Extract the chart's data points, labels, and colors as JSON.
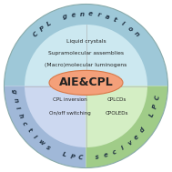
{
  "title": "AIE&CPL",
  "center_ellipse_color": "#f4a07a",
  "center_ellipse_edge": "#d87848",
  "top_label": "CPL generation",
  "left_label": "CPL switching",
  "right_label": "CPL devices",
  "top_items": [
    "Liquid crystals",
    "Supramolecular assemblies",
    "(Macro)molecular luminogens"
  ],
  "bottom_left_items": [
    "CPL inversion",
    "On/off switching"
  ],
  "bottom_right_items": [
    "CPLCDs",
    "CPOLEDs"
  ],
  "bg_color": "#ffffff",
  "outer_top_color": "#9ec8d8",
  "outer_bl_color": "#a0b8d8",
  "outer_br_color": "#a0cc88",
  "inner_top_color": "#cce8f0",
  "inner_bl_color": "#ccd8f0",
  "inner_br_color": "#d4eec4",
  "outer_edge_color": "#88aaaa"
}
